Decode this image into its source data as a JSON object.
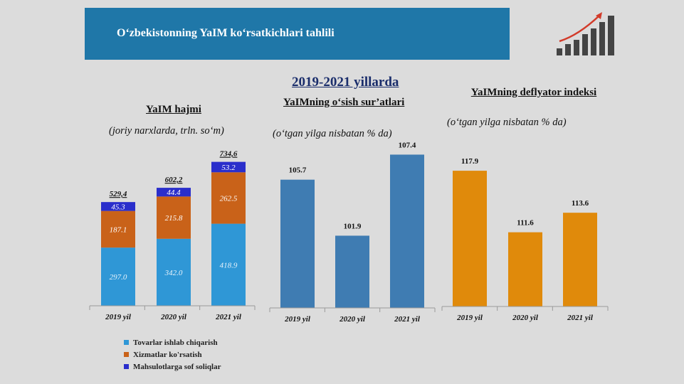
{
  "slide_title": "O‘zbekistonning YaIM ko‘rsatkichlari tahlili",
  "period_title": "2019-2021 yillarda",
  "colors": {
    "banner": "#1f77a8",
    "tovarlar": "#2f97d6",
    "xizmatlar": "#c96219",
    "soliqlar": "#2a2ecb",
    "growth_bar": "#3f7cb2",
    "deflator_bar": "#e08a0b",
    "axis": "#9a9a9a"
  },
  "icons": {
    "growth": "bar-chart-arrow-up-icon"
  },
  "legend": [
    {
      "label": "Tovarlar ishlab chiqarish",
      "color": "#2f97d6"
    },
    {
      "label": "Xizmatlar ko'rsatish",
      "color": "#c96219"
    },
    {
      "label": "Mahsulotlarga sof soliqlar",
      "color": "#2a2ecb"
    }
  ],
  "chart_data": [
    {
      "type": "bar",
      "stacked": true,
      "title": "YaIM hajmi",
      "subtitle": "(joriy narxlarda, trln. so‘m)",
      "categories": [
        "2019 yil",
        "2020 yil",
        "2021 yil"
      ],
      "series": [
        {
          "name": "Tovarlar ishlab chiqarish",
          "values": [
            297.0,
            342.0,
            418.9
          ],
          "labels": [
            "297.0",
            "342.0",
            "418.9"
          ]
        },
        {
          "name": "Xizmatlar ko'rsatish",
          "values": [
            187.1,
            215.8,
            262.5
          ],
          "labels": [
            "187.1",
            "215.8",
            "262.5"
          ]
        },
        {
          "name": "Mahsulotlarga sof soliqlar",
          "values": [
            45.3,
            44.4,
            53.2
          ],
          "labels": [
            "45.3",
            "44.4",
            "53.2"
          ]
        }
      ],
      "totals": [
        529.4,
        602.2,
        734.6
      ],
      "total_labels": [
        "529,4",
        "602,2",
        "734,6"
      ],
      "ylim": [
        0,
        760
      ],
      "legend": "bottom-left",
      "grid": false
    },
    {
      "type": "bar",
      "title": "YaIMning o‘sish sur’atlari",
      "subtitle": "(o‘tgan yilga nisbatan % da)",
      "categories": [
        "2019 yil",
        "2020 yil",
        "2021 yil"
      ],
      "values": [
        105.7,
        101.9,
        107.4
      ],
      "value_labels": [
        "105.7",
        "101.9",
        "107.4"
      ],
      "ylim": [
        97,
        108
      ],
      "grid": false
    },
    {
      "type": "bar",
      "title": "YaIMning deflyator indeksi",
      "subtitle": "(o‘tgan yilga nisbatan % da)",
      "categories": [
        "2019 yil",
        "2020 yil",
        "2021 yil"
      ],
      "values": [
        117.9,
        111.6,
        113.6
      ],
      "value_labels": [
        "117.9",
        "111.6",
        "113.6"
      ],
      "ylim": [
        104,
        119
      ],
      "grid": false
    }
  ]
}
